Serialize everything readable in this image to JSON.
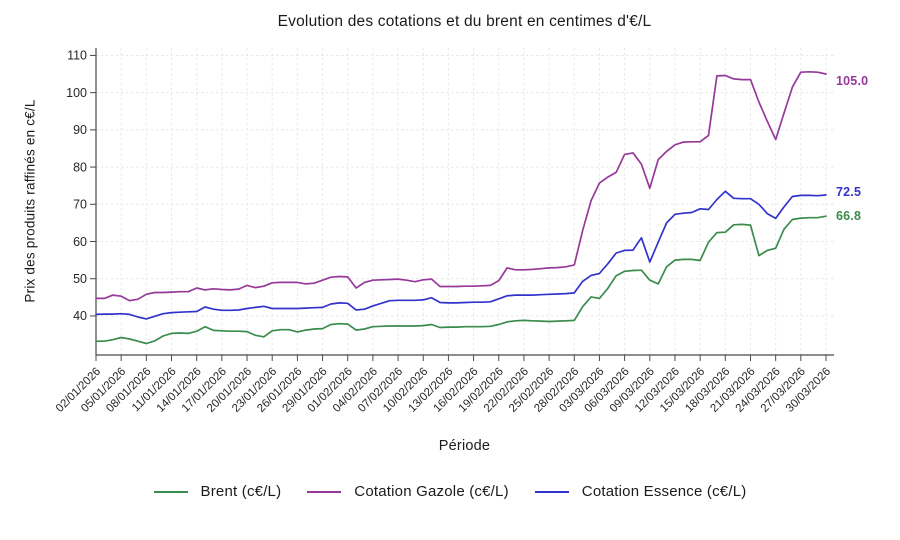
{
  "title": "Evolution des cotations et du brent en centimes d'€/L",
  "axes": {
    "x_label": "Période",
    "y_label": "Prix des produits raffinés en c€/L"
  },
  "chart_data": {
    "type": "line",
    "title": "Evolution des cotations et du brent en centimes d'€/L",
    "xlabel": "Période",
    "ylabel": "Prix des produits raffinés en c€/L",
    "ylim": [
      29.5,
      112
    ],
    "grid": true,
    "legend_position": "bottom",
    "y_ticks": [
      40,
      50,
      60,
      70,
      80,
      90,
      100,
      110
    ],
    "x_tick_labels": [
      "02/01/2026",
      "05/01/2026",
      "08/01/2026",
      "11/01/2026",
      "14/01/2026",
      "17/01/2026",
      "20/01/2026",
      "23/01/2026",
      "26/01/2026",
      "29/01/2026",
      "01/02/2026",
      "04/02/2026",
      "07/02/2026",
      "10/02/2026",
      "13/02/2026",
      "16/02/2026",
      "19/02/2026",
      "22/02/2026",
      "25/02/2026",
      "28/02/2026",
      "03/03/2026",
      "06/03/2026",
      "09/03/2026",
      "12/03/2026",
      "15/03/2026",
      "18/03/2026",
      "21/03/2026",
      "24/03/2026",
      "27/03/2026",
      "30/03/2026"
    ],
    "x": [
      "02/01/2026",
      "03/01/2026",
      "04/01/2026",
      "05/01/2026",
      "06/01/2026",
      "07/01/2026",
      "08/01/2026",
      "09/01/2026",
      "10/01/2026",
      "11/01/2026",
      "12/01/2026",
      "13/01/2026",
      "14/01/2026",
      "15/01/2026",
      "16/01/2026",
      "17/01/2026",
      "18/01/2026",
      "19/01/2026",
      "20/01/2026",
      "21/01/2026",
      "22/01/2026",
      "23/01/2026",
      "24/01/2026",
      "25/01/2026",
      "26/01/2026",
      "27/01/2026",
      "28/01/2026",
      "29/01/2026",
      "30/01/2026",
      "31/01/2026",
      "01/02/2026",
      "02/02/2026",
      "03/02/2026",
      "04/02/2026",
      "05/02/2026",
      "06/02/2026",
      "07/02/2026",
      "08/02/2026",
      "09/02/2026",
      "10/02/2026",
      "11/02/2026",
      "12/02/2026",
      "13/02/2026",
      "14/02/2026",
      "15/02/2026",
      "16/02/2026",
      "17/02/2026",
      "18/02/2026",
      "19/02/2026",
      "20/02/2026",
      "21/02/2026",
      "22/02/2026",
      "23/02/2026",
      "24/02/2026",
      "25/02/2026",
      "26/02/2026",
      "27/02/2026",
      "28/02/2026",
      "01/03/2026",
      "02/03/2026",
      "03/03/2026",
      "04/03/2026",
      "05/03/2026",
      "06/03/2026",
      "07/03/2026",
      "08/03/2026",
      "09/03/2026",
      "10/03/2026",
      "11/03/2026",
      "12/03/2026",
      "13/03/2026",
      "14/03/2026",
      "15/03/2026",
      "16/03/2026",
      "17/03/2026",
      "18/03/2026",
      "19/03/2026",
      "20/03/2026",
      "21/03/2026",
      "22/03/2026",
      "23/03/2026",
      "24/03/2026",
      "25/03/2026",
      "26/03/2026",
      "27/03/2026",
      "28/03/2026",
      "29/03/2026",
      "30/03/2026"
    ],
    "series": [
      {
        "name": "Brent (c€/L)",
        "key": "brent",
        "color": "#3a8c4c",
        "values": [
          33.2,
          33.2,
          33.6,
          34.2,
          33.8,
          33.2,
          32.6,
          33.3,
          34.6,
          35.3,
          35.4,
          35.3,
          35.9,
          37.1,
          36.1,
          36.0,
          35.9,
          35.9,
          35.8,
          34.8,
          34.4,
          36.0,
          36.3,
          36.3,
          35.7,
          36.2,
          36.5,
          36.6,
          37.7,
          37.9,
          37.8,
          36.2,
          36.5,
          37.1,
          37.2,
          37.3,
          37.3,
          37.3,
          37.3,
          37.4,
          37.7,
          36.9,
          37.0,
          37.0,
          37.1,
          37.1,
          37.1,
          37.2,
          37.7,
          38.4,
          38.7,
          38.8,
          38.7,
          38.6,
          38.5,
          38.6,
          38.7,
          38.8,
          42.5,
          45.1,
          44.7,
          47.4,
          50.8,
          52.0,
          52.2,
          52.3,
          49.6,
          48.6,
          53.2,
          55.0,
          55.2,
          55.2,
          54.9,
          59.8,
          62.4,
          62.5,
          64.5,
          64.6,
          64.4,
          56.2,
          57.6,
          58.2,
          63.3,
          65.9,
          66.3,
          66.4,
          66.4,
          66.8
        ]
      },
      {
        "name": "Cotation Gazole (c€/L)",
        "key": "gazole",
        "color": "#97399b",
        "values": [
          44.7,
          44.7,
          45.6,
          45.3,
          44.1,
          44.5,
          45.8,
          46.3,
          46.3,
          46.4,
          46.5,
          46.5,
          47.5,
          47.0,
          47.3,
          47.1,
          47.0,
          47.2,
          48.2,
          47.6,
          48.0,
          48.9,
          49.0,
          49.0,
          49.0,
          48.6,
          48.8,
          49.6,
          50.4,
          50.6,
          50.5,
          47.5,
          49.0,
          49.6,
          49.7,
          49.8,
          49.9,
          49.6,
          49.2,
          49.7,
          49.9,
          47.9,
          47.9,
          47.9,
          48.0,
          48.0,
          48.1,
          48.2,
          49.5,
          52.9,
          52.4,
          52.4,
          52.5,
          52.7,
          52.9,
          53.0,
          53.2,
          53.7,
          63.0,
          71.0,
          75.7,
          77.3,
          78.6,
          83.4,
          83.8,
          80.8,
          74.3,
          82.0,
          84.2,
          86.0,
          86.7,
          86.8,
          86.8,
          88.5,
          104.5,
          104.6,
          103.7,
          103.5,
          103.5,
          97.5,
          92.3,
          87.4,
          94.5,
          101.5,
          105.5,
          105.6,
          105.5,
          105.0
        ]
      },
      {
        "name": "Cotation Essence (c€/L)",
        "key": "essence",
        "color": "#3333cc",
        "values": [
          40.4,
          40.5,
          40.5,
          40.6,
          40.4,
          39.7,
          39.2,
          39.9,
          40.6,
          40.9,
          41.0,
          41.1,
          41.2,
          42.4,
          41.8,
          41.5,
          41.5,
          41.6,
          42.0,
          42.3,
          42.6,
          42.0,
          42.0,
          42.0,
          42.0,
          42.1,
          42.2,
          42.3,
          43.2,
          43.5,
          43.4,
          41.6,
          41.8,
          42.7,
          43.4,
          44.1,
          44.2,
          44.2,
          44.2,
          44.3,
          44.9,
          43.6,
          43.5,
          43.5,
          43.6,
          43.7,
          43.7,
          43.8,
          44.6,
          45.4,
          45.6,
          45.6,
          45.6,
          45.7,
          45.8,
          45.9,
          46.0,
          46.2,
          49.3,
          50.9,
          51.4,
          54.0,
          56.9,
          57.6,
          57.7,
          61.0,
          54.5,
          59.8,
          65.0,
          67.3,
          67.6,
          67.8,
          68.8,
          68.6,
          71.3,
          73.5,
          71.6,
          71.5,
          71.5,
          70.0,
          67.5,
          66.2,
          69.3,
          72.1,
          72.4,
          72.4,
          72.3,
          72.5
        ]
      }
    ],
    "end_labels": [
      {
        "series": "gazole",
        "text": "105.0"
      },
      {
        "series": "essence",
        "text": "72.5"
      },
      {
        "series": "brent",
        "text": "66.8"
      }
    ]
  },
  "legend": {
    "items": [
      {
        "label": "Brent (c€/L)",
        "series": "brent"
      },
      {
        "label": "Cotation Gazole (c€/L)",
        "series": "gazole"
      },
      {
        "label": "Cotation Essence (c€/L)",
        "series": "essence"
      }
    ]
  },
  "style": {
    "axis_color": "#4a4a4a",
    "grid_color": "#e8e8e8",
    "tick_text_color": "#262626"
  }
}
